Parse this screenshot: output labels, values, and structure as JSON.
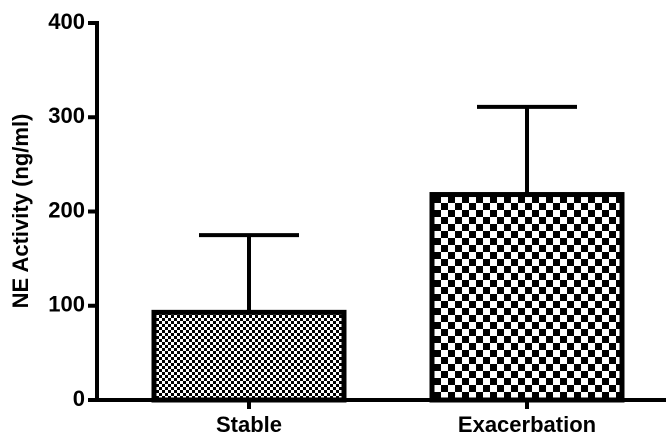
{
  "chart_data": {
    "type": "bar",
    "y_label": "NE Activity (ng/ml)",
    "categories": [
      "Stable",
      "Exacerbation"
    ],
    "values": [
      93,
      218
    ],
    "errors": [
      82,
      93
    ],
    "color": "#000000",
    "ylim": [
      0,
      400
    ],
    "yticks": [
      0,
      100,
      200,
      300,
      400
    ],
    "grid": false
  }
}
